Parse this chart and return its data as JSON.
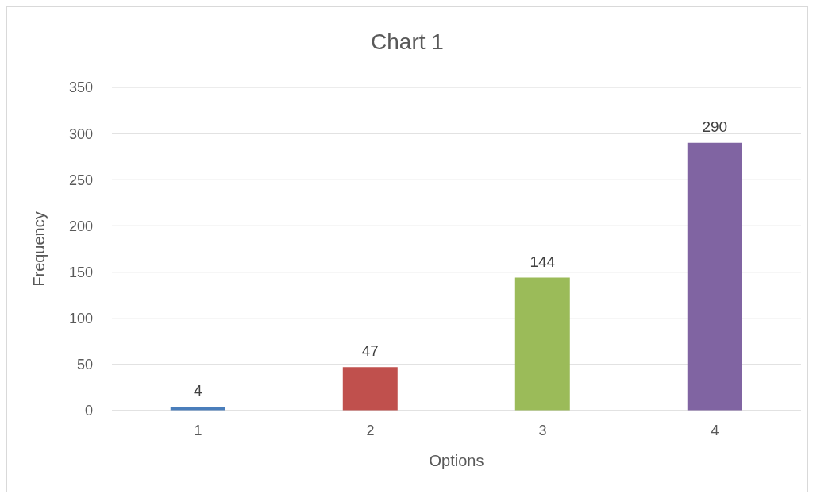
{
  "chart_data": {
    "type": "bar",
    "title": "Chart 1",
    "xlabel": "Options",
    "ylabel": "Frequency",
    "categories": [
      "1",
      "2",
      "3",
      "4"
    ],
    "values": [
      4,
      47,
      144,
      290
    ],
    "colors": [
      "#4a7ebb",
      "#c0504d",
      "#9bbb59",
      "#8064a2"
    ],
    "ylim": [
      0,
      350
    ],
    "yticks": [
      0,
      50,
      100,
      150,
      200,
      250,
      300,
      350
    ],
    "grid": "y",
    "data_labels": true
  }
}
